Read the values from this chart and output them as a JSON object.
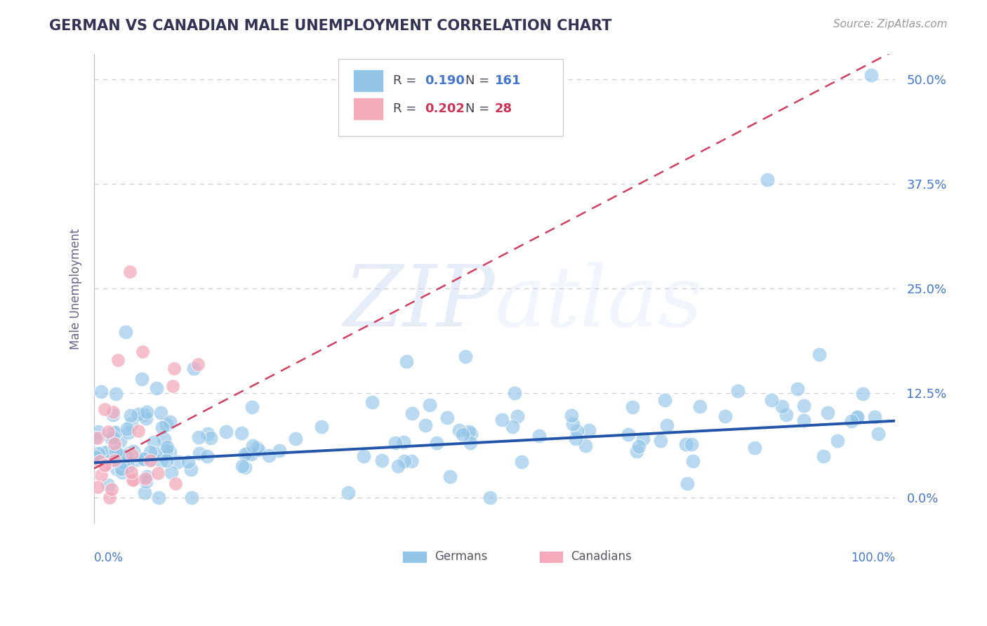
{
  "title": "GERMAN VS CANADIAN MALE UNEMPLOYMENT CORRELATION CHART",
  "source": "Source: ZipAtlas.com",
  "ylabel": "Male Unemployment",
  "legend_german": "Germans",
  "legend_canadian": "Canadians",
  "R_german": 0.19,
  "N_german": 161,
  "R_canadian": 0.202,
  "N_canadian": 28,
  "german_color": "#92C5E8",
  "canadian_color": "#F4AABB",
  "german_line_color": "#2255AA",
  "canadian_line_color": "#D04060",
  "grid_color": "#CCCCDD",
  "background_color": "#FFFFFF",
  "text_color_blue": "#4477CC",
  "text_color_pink": "#CC3355",
  "text_color_dark": "#333355",
  "ytick_labels": [
    "0.0%",
    "12.5%",
    "25.0%",
    "37.5%",
    "50.0%"
  ],
  "ytick_values": [
    0.0,
    12.5,
    25.0,
    37.5,
    50.0
  ],
  "xlim": [
    0,
    100
  ],
  "ylim": [
    -3,
    53
  ],
  "german_reg_slope": 0.05,
  "german_reg_intercept": 4.2,
  "canadian_reg_slope": 0.5,
  "canadian_reg_intercept": 3.5
}
